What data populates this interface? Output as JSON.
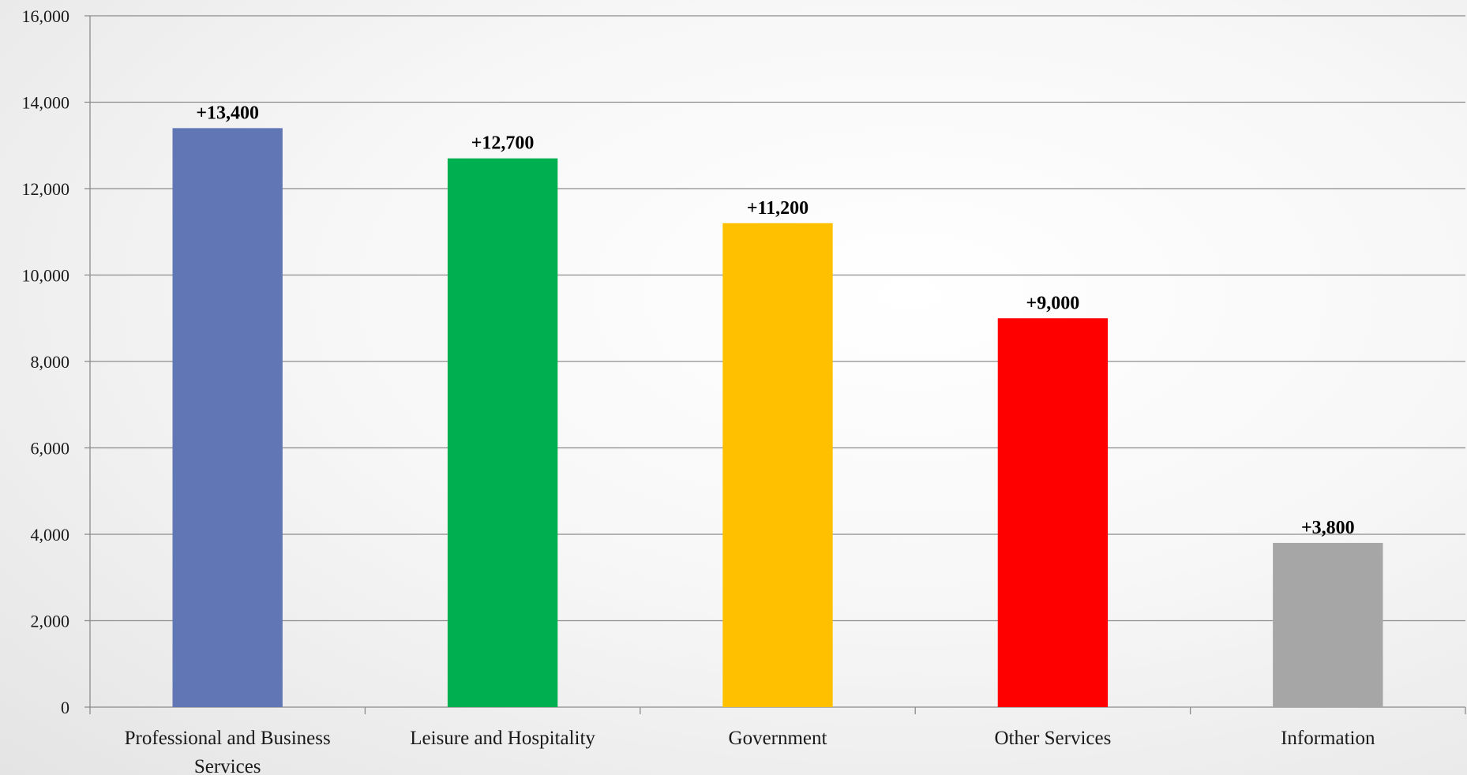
{
  "chart_data": {
    "type": "bar",
    "categories": [
      [
        "Professional and Business",
        "Services"
      ],
      [
        "Leisure and Hospitality"
      ],
      [
        "Government"
      ],
      [
        "Other Services"
      ],
      [
        "Information"
      ]
    ],
    "values": [
      13400,
      12700,
      11200,
      9000,
      3800
    ],
    "data_labels": [
      "+13,400",
      "+12,700",
      "+11,200",
      "+9,000",
      "+3,800"
    ],
    "colors": [
      "#6177b5",
      "#00b050",
      "#ffc000",
      "#ff0000",
      "#a6a6a6"
    ],
    "ylim": [
      0,
      16000
    ],
    "yticks": [
      0,
      2000,
      4000,
      6000,
      8000,
      10000,
      12000,
      14000,
      16000
    ],
    "ytick_labels": [
      "0",
      "2,000",
      "4,000",
      "6,000",
      "8,000",
      "10,000",
      "12,000",
      "14,000",
      "16,000"
    ],
    "grid": true,
    "legend": "none",
    "title": "",
    "xlabel": "",
    "ylabel": ""
  }
}
